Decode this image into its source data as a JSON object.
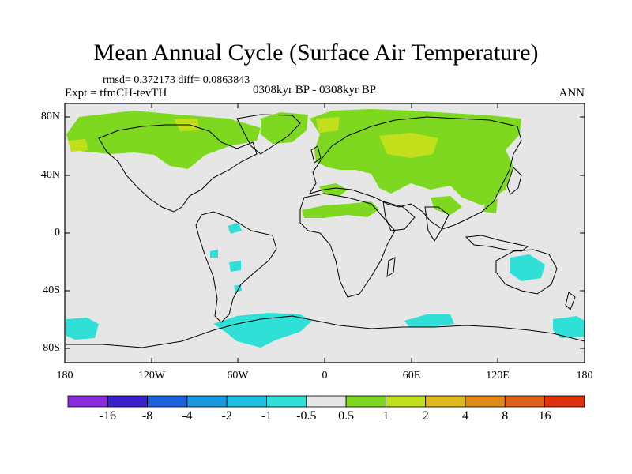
{
  "title": "Mean Annual Cycle (Surface Air Temperature)",
  "stats": "rmsd= 0.372173 diff= 0.0863843",
  "experiment": "Expt = tfmCH-tevTH",
  "period": "0308kyr BP - 0308kyr BP",
  "season": "ANN",
  "lat_labels": [
    "80N",
    "40N",
    "0",
    "40S",
    "80S"
  ],
  "lon_labels": [
    "180",
    "120W",
    "60W",
    "0",
    "60E",
    "120E",
    "180"
  ],
  "colorbar": {
    "labels": [
      "-16",
      "-8",
      "-4",
      "-2",
      "-1",
      "-0.5",
      "0.5",
      "1",
      "2",
      "4",
      "8",
      "16"
    ],
    "colors": [
      "#8a2be2",
      "#3a1fd0",
      "#1c60e0",
      "#1a98e0",
      "#1cc0e0",
      "#2ee0d6",
      "#e6e6e6",
      "#7fd820",
      "#c2df1c",
      "#dfb81c",
      "#e08a14",
      "#e0601a",
      "#e0300e"
    ]
  },
  "colors": {
    "ocean": "#e6e6e6",
    "warm": "#7fd820",
    "warmer": "#c2df1c",
    "cool": "#2ee0d6"
  }
}
